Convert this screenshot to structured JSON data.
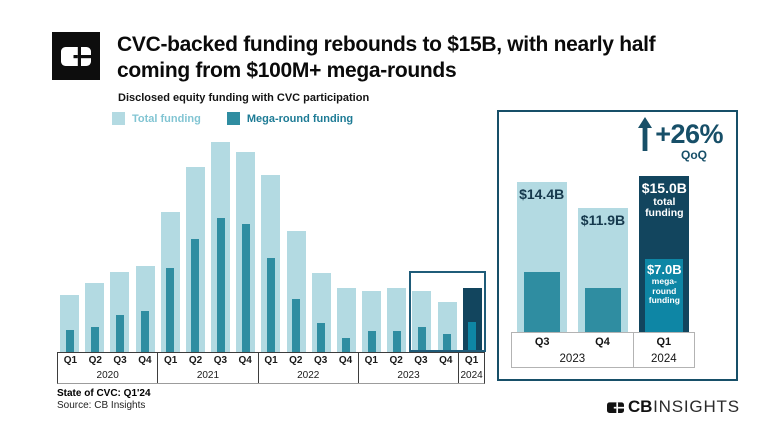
{
  "header": {
    "title": "CVC-backed funding rebounds to $15B, with nearly half\ncoming from $100M+ mega-rounds",
    "subtitle": "Disclosed equity funding with CVC participation"
  },
  "legend": {
    "items": [
      {
        "label": "Total funding",
        "swatch": "#b3dae2",
        "text_color": "#82c5d3"
      },
      {
        "label": "Mega-round funding",
        "swatch": "#2f8da1",
        "text_color": "#1d7b95"
      }
    ]
  },
  "colors": {
    "total": "#b3dae2",
    "mega": "#2f8da1",
    "dark_total": "#12455e",
    "dark_mega": "#0e86a5",
    "navy": "#174f68"
  },
  "chart_data": [
    {
      "type": "bar",
      "name": "quarterly-cvc-funding",
      "title": "Disclosed equity funding with CVC participation",
      "unit": "$B",
      "categories": [
        "Q1",
        "Q2",
        "Q3",
        "Q4",
        "Q1",
        "Q2",
        "Q3",
        "Q4",
        "Q1",
        "Q2",
        "Q3",
        "Q4",
        "Q1",
        "Q2",
        "Q3",
        "Q4",
        "Q1"
      ],
      "year_groups": [
        {
          "year": "2020",
          "quarters": [
            "Q1",
            "Q2",
            "Q3",
            "Q4"
          ]
        },
        {
          "year": "2021",
          "quarters": [
            "Q1",
            "Q2",
            "Q3",
            "Q4"
          ]
        },
        {
          "year": "2022",
          "quarters": [
            "Q1",
            "Q2",
            "Q3",
            "Q4"
          ]
        },
        {
          "year": "2023",
          "quarters": [
            "Q1",
            "Q2",
            "Q3",
            "Q4"
          ]
        },
        {
          "year": "2024",
          "quarters": [
            "Q1"
          ]
        }
      ],
      "series": [
        {
          "name": "Total funding",
          "values": [
            13.4,
            16.2,
            18.9,
            20.3,
            33.0,
            43.7,
            49.5,
            47.2,
            41.8,
            28.6,
            18.7,
            15.0,
            14.4,
            15.1,
            14.4,
            11.9,
            15.0
          ]
        },
        {
          "name": "Mega-round funding",
          "values": [
            5.2,
            5.9,
            8.7,
            9.7,
            19.9,
            26.6,
            31.5,
            30.1,
            22.2,
            12.6,
            6.9,
            3.3,
            5.0,
            4.9,
            5.8,
            4.2,
            7.0
          ]
        }
      ],
      "ylim": [
        0,
        50
      ],
      "grid": false,
      "dark_bar_index": 16,
      "highlight_box_last_n": 3
    },
    {
      "type": "bar",
      "name": "recent-quarters-inset",
      "annotation": {
        "value": "+26%",
        "label": "QoQ"
      },
      "categories": [
        "Q3",
        "Q4",
        "Q1"
      ],
      "year_groups": [
        {
          "year": "2023",
          "quarters": [
            "Q3",
            "Q4"
          ]
        },
        {
          "year": "2024",
          "quarters": [
            "Q1"
          ]
        }
      ],
      "series": [
        {
          "name": "Total funding",
          "values": [
            14.4,
            11.9,
            15.0
          ]
        },
        {
          "name": "Mega-round funding",
          "values": [
            5.8,
            4.2,
            7.0
          ]
        }
      ],
      "bar_labels": [
        {
          "total": "$14.4B"
        },
        {
          "total": "$11.9B"
        },
        {
          "total": "$15.0B",
          "total_sub": "total funding",
          "mega": "$7.0B",
          "mega_sub": "mega-round funding"
        }
      ],
      "ylim": [
        0,
        16
      ],
      "dark_bar_index": 2
    }
  ],
  "footer": {
    "report": "State of CVC: Q1'24",
    "source": "Source: CB Insights"
  },
  "brand": {
    "bold": "CB",
    "light": "INSIGHTS"
  }
}
